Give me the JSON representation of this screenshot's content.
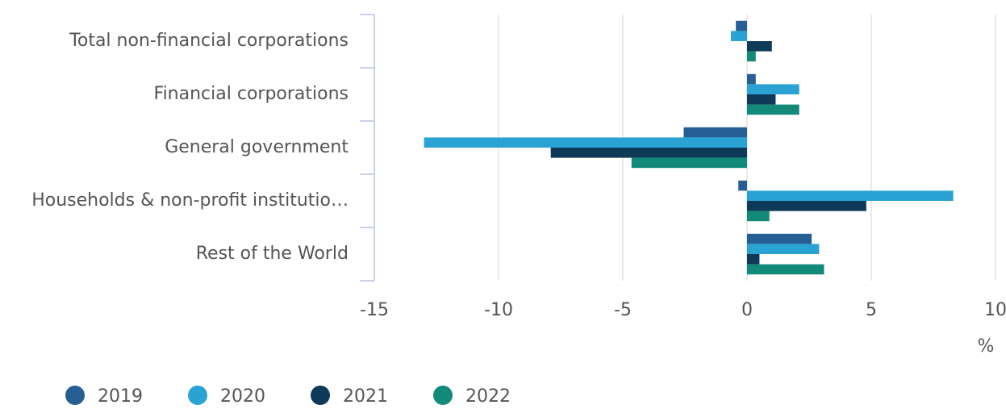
{
  "chart_data": {
    "type": "hbar",
    "categories": [
      "Total non-financial corporations",
      "Financial corporations",
      "General government",
      "Households & non-profit institutio…",
      "Rest of the World"
    ],
    "series": [
      {
        "name": "2019",
        "color": "#255f93",
        "values": [
          -0.45,
          0.35,
          -2.55,
          -0.35,
          2.6
        ]
      },
      {
        "name": "2020",
        "color": "#2aa3d4",
        "values": [
          -0.65,
          2.1,
          -13.0,
          8.3,
          2.9
        ]
      },
      {
        "name": "2021",
        "color": "#0c3a58",
        "values": [
          1.0,
          1.15,
          -7.9,
          4.8,
          0.5
        ]
      },
      {
        "name": "2022",
        "color": "#138a79",
        "values": [
          0.35,
          2.1,
          -4.65,
          0.9,
          3.1
        ]
      }
    ],
    "xlabel": "%",
    "xlim": [
      -15,
      10
    ],
    "xticks": [
      -15,
      -10,
      -5,
      0,
      5,
      10
    ],
    "grid": true,
    "legend": "bottom"
  }
}
